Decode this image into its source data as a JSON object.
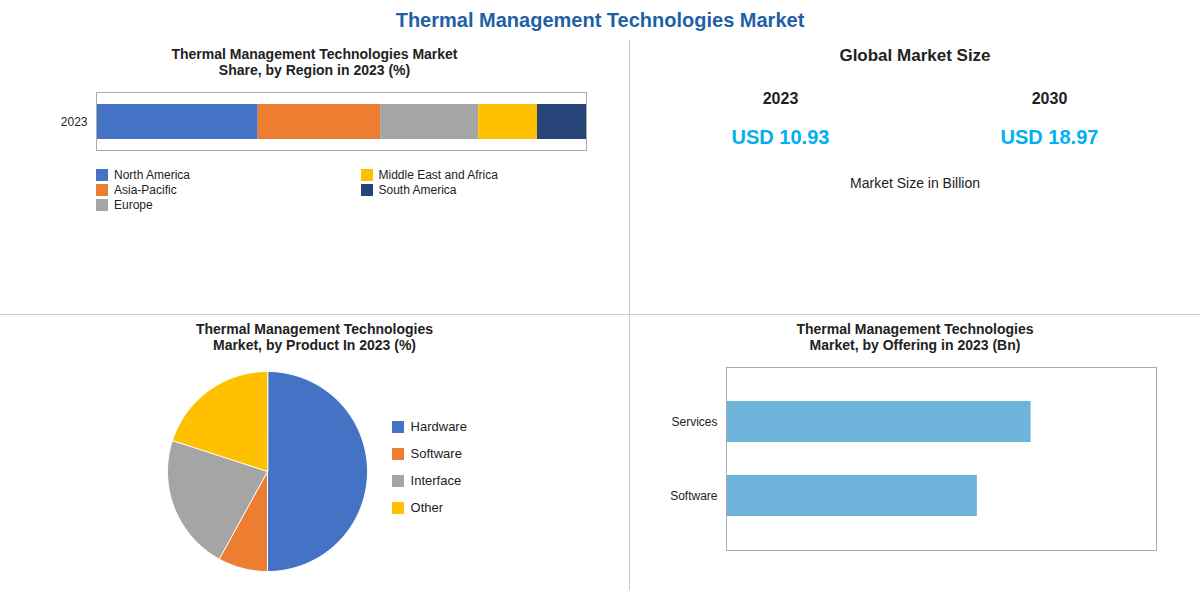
{
  "title": "Thermal Management Technologies Market",
  "color": "#1F5FA6",
  "chart_data": [
    {
      "type": "bar",
      "title": "Thermal Management Technologies Market\nShare, by Region in 2023 (%)",
      "orientation": "horizontal",
      "stacked": true,
      "categories": [
        "2023"
      ],
      "series": [
        {
          "name": "North America",
          "color": "#4472C4",
          "values": [
            33
          ]
        },
        {
          "name": "Asia-Pacific",
          "color": "#ED7D31",
          "values": [
            25
          ]
        },
        {
          "name": "Europe",
          "color": "#A5A5A5",
          "values": [
            20
          ]
        },
        {
          "name": "Middle East and Africa",
          "color": "#FFC000",
          "values": [
            12
          ]
        },
        {
          "name": "South America",
          "color": "#264478",
          "values": [
            10
          ]
        }
      ],
      "xlim": [
        0,
        100
      ],
      "tick_labels": "y",
      "legend": "bottom"
    },
    {
      "type": "text",
      "title": "Global Market Size",
      "categories": [
        "2023",
        "2030"
      ],
      "annotations": [
        "USD 10.93",
        "USD 18.97"
      ],
      "color": "#00B0F0",
      "subtitle": "Market Size in Billion"
    },
    {
      "type": "pie",
      "title": "Thermal Management Technologies\nMarket, by Product In 2023 (%)",
      "categories": [
        "Hardware",
        "Software",
        "Interface",
        "Other"
      ],
      "values": [
        50,
        8,
        22,
        20
      ],
      "colors": [
        "#4472C4",
        "#ED7D31",
        "#A5A5A5",
        "#FFC000"
      ],
      "legend": "right"
    },
    {
      "type": "bar",
      "title": "Thermal Management Technologies\nMarket, by Offering in 2023 (Bn)",
      "orientation": "horizontal",
      "categories": [
        "Software",
        "Services"
      ],
      "values": [
        7.0,
        8.5
      ],
      "color": "#6EB3D9",
      "xlim": [
        0,
        12
      ],
      "tick_labels": "y"
    }
  ]
}
